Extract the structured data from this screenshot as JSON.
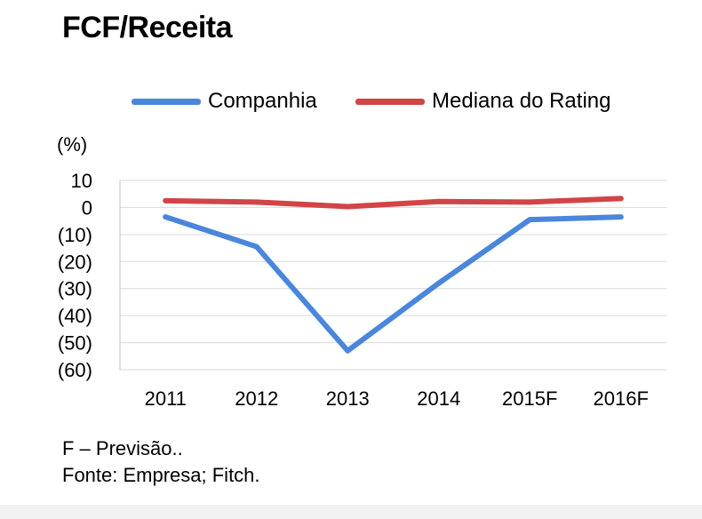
{
  "page": {
    "title": "FCF/Receita",
    "unit_label": "(%)"
  },
  "legend": [
    {
      "name": "Companhia",
      "color": "#4a86dc"
    },
    {
      "name": "Mediana do Rating",
      "color": "#d24446"
    }
  ],
  "notes": [
    "F – Previsão..",
    "Fonte: Empresa; Fitch."
  ],
  "chart_data": {
    "type": "line",
    "title": "FCF/Receita",
    "xlabel": "",
    "ylabel": "(%)",
    "categories": [
      "2011",
      "2012",
      "2013",
      "2014",
      "2015F",
      "2016F"
    ],
    "y_ticks": [
      10,
      0,
      -10,
      -20,
      -30,
      -40,
      -50,
      -60
    ],
    "y_tick_labels": [
      "10",
      "0",
      "(10)",
      "(20)",
      "(30)",
      "(40)",
      "(50)",
      "(60)"
    ],
    "ylim": [
      -60,
      10
    ],
    "grid": true,
    "legend_position": "top",
    "series": [
      {
        "name": "Companhia",
        "color": "#4a86dc",
        "values": [
          -3.5,
          -14.5,
          -53,
          -28,
          -4.5,
          -3.5
        ]
      },
      {
        "name": "Mediana do Rating",
        "color": "#d24446",
        "values": [
          2.5,
          2,
          0.3,
          2.2,
          2,
          3.3
        ]
      }
    ]
  }
}
